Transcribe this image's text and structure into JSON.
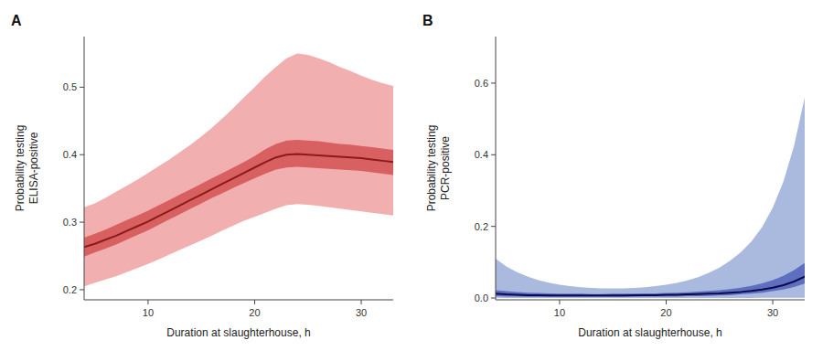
{
  "chart_data": [
    {
      "type": "line",
      "title": "A",
      "xlabel": "Duration at slaughterhouse, h",
      "ylabel": "Probability testing\nELISA-positive",
      "xlim": [
        4,
        33
      ],
      "ylim": [
        0.185,
        0.575
      ],
      "xticks": [
        10,
        20,
        30
      ],
      "yticks": [
        0.2,
        0.3,
        0.4,
        0.5
      ],
      "x": [
        4,
        5,
        6,
        7,
        8,
        9,
        10,
        11,
        12,
        13,
        14,
        15,
        16,
        17,
        18,
        19,
        20,
        21,
        22,
        23,
        24,
        25,
        26,
        27,
        28,
        29,
        30,
        31,
        32,
        33
      ],
      "series": [
        {
          "type": "band",
          "color": "#F2AFAF",
          "lower": [
            0.205,
            0.21,
            0.215,
            0.22,
            0.226,
            0.232,
            0.238,
            0.245,
            0.252,
            0.259,
            0.266,
            0.273,
            0.28,
            0.288,
            0.295,
            0.302,
            0.308,
            0.314,
            0.32,
            0.325,
            0.327,
            0.326,
            0.324,
            0.322,
            0.32,
            0.318,
            0.316,
            0.314,
            0.312,
            0.31
          ],
          "upper": [
            0.322,
            0.328,
            0.336,
            0.345,
            0.354,
            0.363,
            0.373,
            0.383,
            0.393,
            0.404,
            0.415,
            0.427,
            0.44,
            0.454,
            0.469,
            0.485,
            0.5,
            0.516,
            0.53,
            0.543,
            0.55,
            0.548,
            0.543,
            0.537,
            0.53,
            0.524,
            0.517,
            0.511,
            0.506,
            0.502
          ]
        },
        {
          "type": "band",
          "color": "#D96060",
          "lower": [
            0.249,
            0.255,
            0.261,
            0.267,
            0.274,
            0.281,
            0.288,
            0.296,
            0.304,
            0.312,
            0.32,
            0.328,
            0.336,
            0.343,
            0.351,
            0.358,
            0.365,
            0.372,
            0.378,
            0.381,
            0.382,
            0.381,
            0.38,
            0.379,
            0.378,
            0.377,
            0.376,
            0.374,
            0.372,
            0.37
          ],
          "upper": [
            0.277,
            0.283,
            0.289,
            0.296,
            0.303,
            0.31,
            0.317,
            0.325,
            0.333,
            0.341,
            0.349,
            0.357,
            0.365,
            0.373,
            0.381,
            0.389,
            0.398,
            0.408,
            0.416,
            0.421,
            0.422,
            0.421,
            0.42,
            0.418,
            0.416,
            0.415,
            0.413,
            0.411,
            0.409,
            0.407
          ]
        },
        {
          "type": "line",
          "color": "#8B1A1A",
          "values": [
            0.263,
            0.268,
            0.274,
            0.28,
            0.287,
            0.294,
            0.301,
            0.309,
            0.317,
            0.325,
            0.333,
            0.341,
            0.349,
            0.357,
            0.365,
            0.373,
            0.381,
            0.389,
            0.396,
            0.4,
            0.401,
            0.4,
            0.399,
            0.398,
            0.397,
            0.396,
            0.395,
            0.393,
            0.391,
            0.389
          ]
        }
      ]
    },
    {
      "type": "line",
      "title": "B",
      "xlabel": "Duration at slaughterhouse, h",
      "ylabel": "Probability testing\nPCR-positive",
      "xlim": [
        4,
        33
      ],
      "ylim": [
        -0.005,
        0.73
      ],
      "xticks": [
        10,
        20,
        30
      ],
      "yticks": [
        {
          "value": 0,
          "label": "0.0"
        },
        0.2,
        0.4,
        0.6
      ],
      "x": [
        4,
        5,
        6,
        7,
        8,
        9,
        10,
        11,
        12,
        13,
        14,
        15,
        16,
        17,
        18,
        19,
        20,
        21,
        22,
        23,
        24,
        25,
        26,
        27,
        28,
        29,
        30,
        31,
        32,
        33
      ],
      "series": [
        {
          "type": "band",
          "color": "#AABADE",
          "lower": [
            0.0005,
            0.0004,
            0.0003,
            0.0003,
            0.0002,
            0.0002,
            0.0002,
            0.0002,
            0.0002,
            0.0002,
            0.0002,
            0.0002,
            0.0002,
            0.0002,
            0.0002,
            0.0002,
            0.0002,
            0.0002,
            0.0002,
            0.0002,
            0.0002,
            0.0003,
            0.0003,
            0.0003,
            0.0004,
            0.0005,
            0.0006,
            0.0008,
            0.001,
            0.001
          ],
          "upper": [
            0.11,
            0.088,
            0.072,
            0.06,
            0.05,
            0.043,
            0.037,
            0.033,
            0.03,
            0.028,
            0.027,
            0.027,
            0.027,
            0.028,
            0.03,
            0.033,
            0.037,
            0.042,
            0.049,
            0.058,
            0.07,
            0.085,
            0.104,
            0.128,
            0.158,
            0.198,
            0.252,
            0.325,
            0.425,
            0.56
          ]
        },
        {
          "type": "band",
          "color": "#5F6FBF",
          "lower": [
            0.005,
            0.004,
            0.004,
            0.003,
            0.003,
            0.003,
            0.003,
            0.003,
            0.003,
            0.003,
            0.003,
            0.003,
            0.003,
            0.003,
            0.004,
            0.004,
            0.004,
            0.004,
            0.005,
            0.005,
            0.006,
            0.007,
            0.008,
            0.01,
            0.012,
            0.015,
            0.019,
            0.024,
            0.031,
            0.04
          ],
          "upper": [
            0.022,
            0.019,
            0.017,
            0.015,
            0.014,
            0.013,
            0.012,
            0.012,
            0.012,
            0.011,
            0.011,
            0.012,
            0.012,
            0.012,
            0.013,
            0.013,
            0.014,
            0.015,
            0.016,
            0.018,
            0.02,
            0.022,
            0.025,
            0.029,
            0.034,
            0.041,
            0.05,
            0.062,
            0.078,
            0.098
          ]
        },
        {
          "type": "line",
          "color": "#0A0A4E",
          "values": [
            0.012,
            0.01,
            0.009,
            0.008,
            0.008,
            0.007,
            0.007,
            0.007,
            0.007,
            0.007,
            0.007,
            0.007,
            0.007,
            0.008,
            0.008,
            0.008,
            0.009,
            0.009,
            0.01,
            0.011,
            0.012,
            0.013,
            0.015,
            0.017,
            0.02,
            0.024,
            0.029,
            0.036,
            0.046,
            0.06
          ]
        }
      ]
    }
  ]
}
